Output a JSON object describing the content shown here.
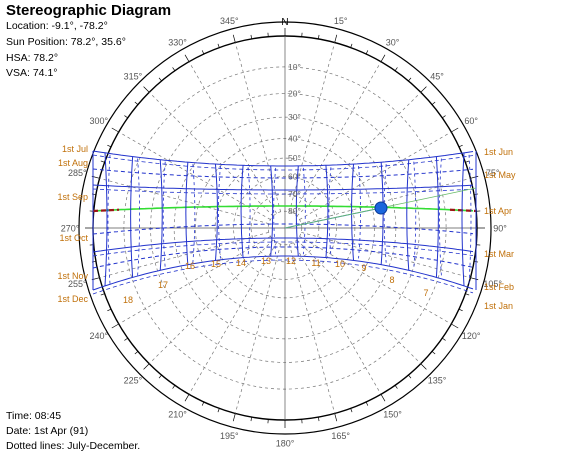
{
  "header": {
    "title": "Stereographic Diagram",
    "location": "Location: -9.1°, -78.2°",
    "sun_position": "Sun Position: 78.2°, 35.6°",
    "hsa": "HSA: 78.2°",
    "vsa": "VSA: 74.1°"
  },
  "footer": {
    "time": "Time: 08:45",
    "date": "Date: 1st Apr (91)",
    "note": "Dotted lines: July-December."
  },
  "compass": {
    "north_label": "N",
    "azimuth_labels": [
      "15°",
      "30°",
      "45°",
      "60°",
      "75°",
      "90°",
      "105°",
      "120°",
      "135°",
      "150°",
      "165°",
      "180°",
      "195°",
      "210°",
      "225°",
      "240°",
      "255°",
      "270°",
      "285°",
      "300°",
      "315°",
      "330°",
      "345°"
    ],
    "altitude_labels": [
      "10°",
      "20°",
      "30°",
      "40°",
      "50°",
      "60°",
      "70°",
      "80°"
    ]
  },
  "months": {
    "left": [
      "1st Jul",
      "1st Aug",
      "1st Sep",
      "1st Oct",
      "1st Nov",
      "1st Dec"
    ],
    "right": [
      "1st Jun",
      "1st May",
      "1st Apr",
      "1st Mar",
      "1st Feb",
      "1st Jan"
    ]
  },
  "hours": [
    "18",
    "17",
    "16",
    "15",
    "14",
    "13",
    "12",
    "11",
    "10",
    "9",
    "8",
    "7"
  ],
  "sun": {
    "azimuth": 78.2,
    "altitude": 35.6
  },
  "colors": {
    "sunpath": "#2233cc",
    "sun_marker": "#1a66dd",
    "equinox": "#33dd33",
    "label": "#c0700a",
    "grid": "#777777"
  }
}
